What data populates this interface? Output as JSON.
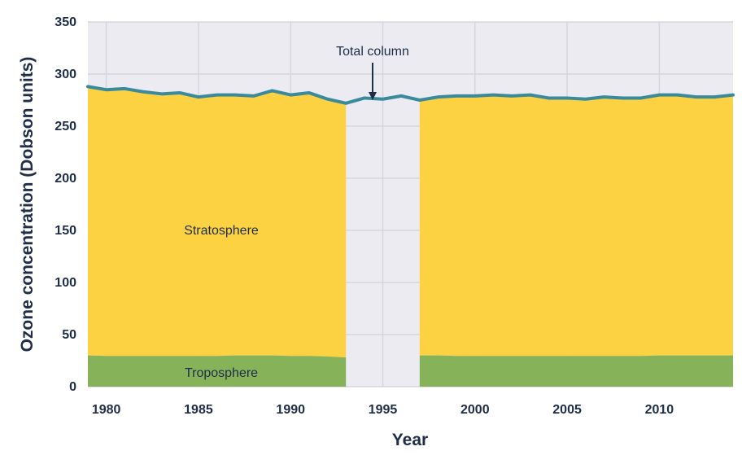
{
  "chart_data": {
    "type": "area",
    "xlabel": "Year",
    "ylabel": "Ozone concentration (Dobson units)",
    "xlim": [
      1979,
      2014
    ],
    "ylim": [
      0,
      350
    ],
    "x_ticks": [
      1980,
      1985,
      1990,
      1995,
      2000,
      2005,
      2010
    ],
    "y_ticks": [
      0,
      50,
      100,
      150,
      200,
      250,
      300,
      350
    ],
    "grid": true,
    "colors": {
      "stratosphere": "#fdd242",
      "troposphere": "#86b35a",
      "total_line": "#3a8a9c",
      "grid": "#d6d6de",
      "plot_background": "#ebebf1",
      "text": "#1f2d4a"
    },
    "area_labels": {
      "stratosphere": "Stratosphere",
      "troposphere": "Troposphere"
    },
    "annotation": {
      "text": "Total column",
      "x": 1994.5
    },
    "series": [
      {
        "name": "Total column",
        "x": [
          1979,
          1980,
          1981,
          1982,
          1983,
          1984,
          1985,
          1986,
          1987,
          1988,
          1989,
          1990,
          1991,
          1992,
          1993,
          1994,
          1995,
          1996,
          1997,
          1998,
          1999,
          2000,
          2001,
          2002,
          2003,
          2004,
          2005,
          2006,
          2007,
          2008,
          2009,
          2010,
          2011,
          2012,
          2013,
          2014
        ],
        "values": [
          288,
          285,
          286,
          283,
          281,
          282,
          278,
          280,
          280,
          279,
          284,
          280,
          282,
          276,
          272,
          277,
          276,
          279,
          275,
          278,
          279,
          279,
          280,
          279,
          280,
          277,
          277,
          276,
          278,
          277,
          277,
          280,
          280,
          278,
          278,
          280
        ]
      },
      {
        "name": "Troposphere",
        "segments": [
          {
            "x": [
              1979,
              1980,
              1981,
              1982,
              1983,
              1984,
              1985,
              1986,
              1987,
              1988,
              1989,
              1990,
              1991,
              1992,
              1993
            ],
            "values": [
              30,
              29.5,
              29.5,
              29.5,
              29.5,
              29.5,
              29.5,
              29.5,
              30,
              30,
              30,
              29.5,
              29.5,
              29,
              28
            ]
          },
          {
            "x": [
              1997,
              1998,
              1999,
              2000,
              2001,
              2002,
              2003,
              2004,
              2005,
              2006,
              2007,
              2008,
              2009,
              2010,
              2011,
              2012,
              2013,
              2014
            ],
            "values": [
              30,
              30,
              29.5,
              29.5,
              29.5,
              29.5,
              29.5,
              29.5,
              29.5,
              29.5,
              29.5,
              29.5,
              29.5,
              30,
              30,
              30,
              30,
              30
            ]
          }
        ]
      }
    ]
  }
}
